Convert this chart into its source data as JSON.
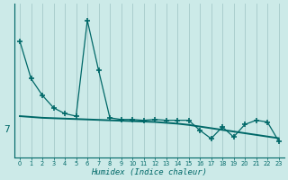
{
  "xlabel": "Humidex (Indice chaleur)",
  "ylabel": "",
  "bg_color": "#cceae8",
  "line_color": "#006868",
  "grid_color": "#aacece",
  "x_values": [
    0,
    1,
    2,
    3,
    4,
    5,
    6,
    7,
    8,
    9,
    10,
    11,
    12,
    13,
    14,
    15,
    16,
    17,
    18,
    19,
    20,
    21,
    22,
    23
  ],
  "y_data": [
    17.5,
    13.0,
    11.0,
    9.5,
    8.8,
    8.5,
    20.0,
    14.0,
    8.3,
    8.1,
    8.1,
    8.0,
    8.1,
    8.0,
    8.0,
    8.0,
    6.8,
    5.8,
    7.2,
    6.0,
    7.5,
    8.0,
    7.8,
    5.5
  ],
  "y_smooth": [
    8.5,
    8.4,
    8.3,
    8.25,
    8.2,
    8.15,
    8.1,
    8.05,
    8.0,
    7.95,
    7.9,
    7.85,
    7.8,
    7.7,
    7.6,
    7.45,
    7.25,
    7.05,
    6.85,
    6.65,
    6.45,
    6.25,
    6.05,
    5.85
  ],
  "ytick_val": "7",
  "ytick_pos": 7.0,
  "ylim": [
    3.5,
    22.0
  ],
  "xlim": [
    -0.5,
    23.5
  ],
  "marker": "+",
  "markersize": 5,
  "markeredgewidth": 1.2,
  "linewidth": 0.9,
  "smooth_linewidth": 1.4
}
